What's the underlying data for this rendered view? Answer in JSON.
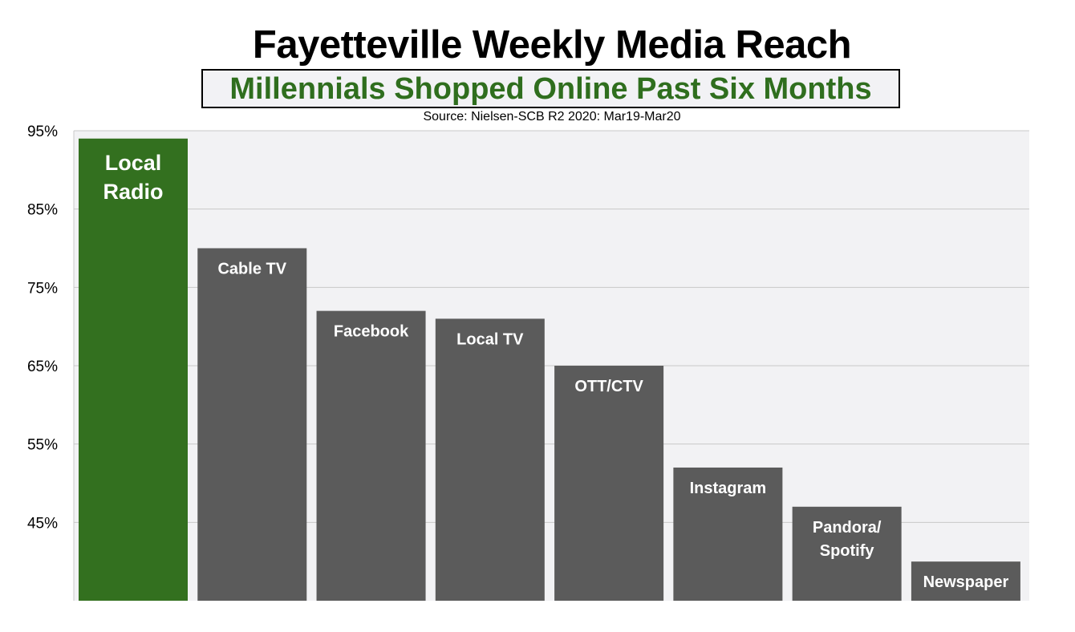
{
  "chart_data": {
    "type": "bar",
    "title": "Fayetteville Weekly Media Reach",
    "subtitle": "Millennials Shopped Online Past Six Months",
    "source": "Source: Nielsen-SCB R2 2020: Mar19-Mar20",
    "categories": [
      [
        "Local",
        "Radio"
      ],
      [
        "Cable TV"
      ],
      [
        "Facebook"
      ],
      [
        "Local TV"
      ],
      [
        "OTT/CTV"
      ],
      [
        "Instagram"
      ],
      [
        "Pandora/",
        "Spotify"
      ],
      [
        "Newspaper"
      ]
    ],
    "values": [
      94,
      80,
      72,
      71,
      65,
      52,
      47,
      40
    ],
    "ylim": [
      35,
      95
    ],
    "yticks": [
      95,
      85,
      75,
      65,
      55,
      45
    ],
    "ytick_labels": [
      "95%",
      "85%",
      "75%",
      "65%",
      "55%",
      "45%"
    ],
    "grid": true,
    "colors": {
      "highlight": "#33701f",
      "bar": "#5b5b5b",
      "plot_background": "#f2f2f4",
      "gridline": "#c8c8c8",
      "label": "#ffffff"
    }
  }
}
